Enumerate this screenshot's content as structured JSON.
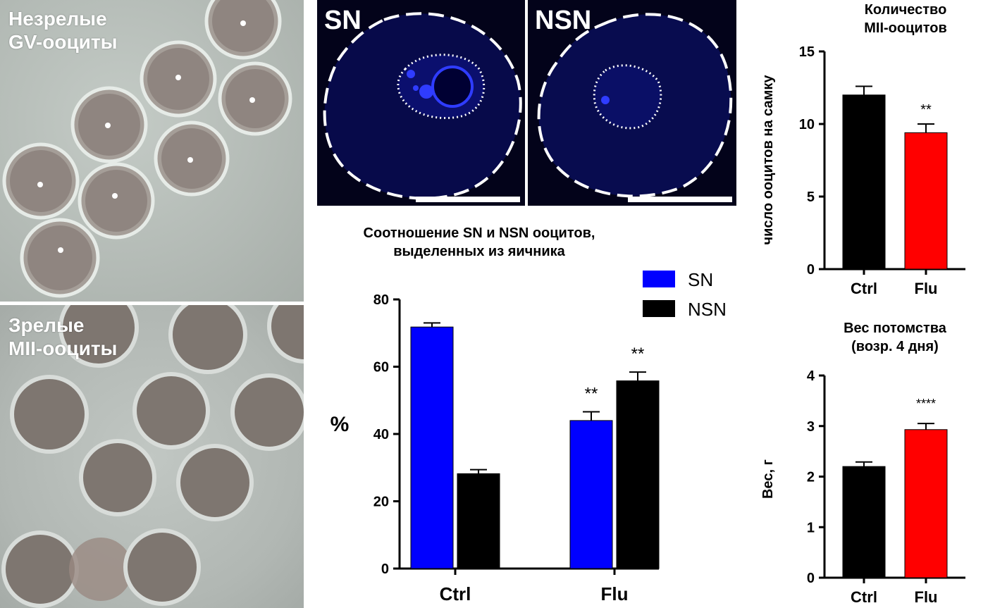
{
  "photos": {
    "immature_label_line1": "Незрелые",
    "immature_label_line2": "GV-ооциты",
    "mature_label_line1": "Зрелые",
    "mature_label_line2": "MII-ооциты"
  },
  "fluorescence": {
    "sn_label": "SN",
    "nsn_label": "NSN"
  },
  "colors": {
    "blue": "#0000ff",
    "black": "#000000",
    "red": "#ff0000"
  },
  "chart_data": [
    {
      "id": "ratio",
      "type": "bar",
      "title_line1": "Соотношение SN и NSN ооцитов,",
      "title_line2": "выделенных из яичника",
      "ylabel": "%",
      "ylim": [
        0,
        80
      ],
      "yticks": [
        "0",
        "20",
        "40",
        "60",
        "80"
      ],
      "categories": [
        "Ctrl",
        "Flu"
      ],
      "legend_position": "top-right",
      "series": [
        {
          "name": "SN",
          "color": "#0000ff",
          "values": [
            71.8,
            44.0
          ],
          "errors": [
            1.2,
            2.6
          ],
          "sig": [
            "",
            "**"
          ]
        },
        {
          "name": "NSN",
          "color": "#000000",
          "values": [
            28.2,
            55.8
          ],
          "errors": [
            1.2,
            2.6
          ],
          "sig": [
            "",
            "**"
          ]
        }
      ]
    },
    {
      "id": "mii_count",
      "type": "bar",
      "title_line1": "Количество",
      "title_line2": "MII-ооцитов",
      "ylabel": "число ооцитов на самку",
      "ylim": [
        0,
        15
      ],
      "yticks": [
        "0",
        "5",
        "10",
        "15"
      ],
      "categories": [
        "Ctrl",
        "Flu"
      ],
      "values": [
        12.0,
        9.4
      ],
      "errors": [
        0.6,
        0.6
      ],
      "colors": [
        "#000000",
        "#ff0000"
      ],
      "sig": [
        "",
        "**"
      ]
    },
    {
      "id": "offspring_weight",
      "type": "bar",
      "title_line1": "Вес потомства",
      "title_line2": "(возр. 4 дня)",
      "ylabel": "Вес, г",
      "ylim": [
        0,
        4
      ],
      "yticks": [
        "0",
        "1",
        "2",
        "3",
        "4"
      ],
      "categories": [
        "Ctrl",
        "Flu"
      ],
      "values": [
        2.2,
        2.93
      ],
      "errors": [
        0.09,
        0.12
      ],
      "colors": [
        "#000000",
        "#ff0000"
      ],
      "sig": [
        "",
        "****"
      ]
    }
  ]
}
